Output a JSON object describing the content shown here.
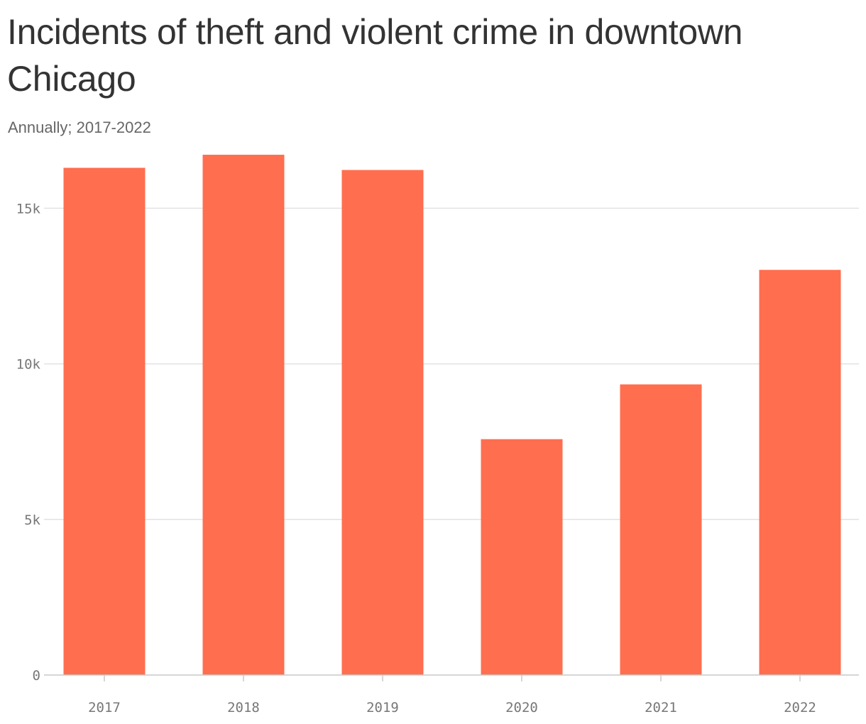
{
  "title": "Incidents of theft and violent crime in downtown Chicago",
  "subtitle": "Annually; 2017-2022",
  "colors": {
    "bar": "#ff6e4f",
    "grid": "#e2e2e2",
    "axis": "#c8c8c8",
    "title": "#333333",
    "subtitle": "#666666",
    "tick_label": "#777777"
  },
  "chart_data": {
    "type": "bar",
    "categories": [
      "2017",
      "2018",
      "2019",
      "2020",
      "2021",
      "2022"
    ],
    "values": [
      16300,
      16720,
      16230,
      7580,
      9340,
      13020
    ],
    "xlabel": "",
    "ylabel": "",
    "ylim": [
      0,
      16720
    ],
    "y_ticks": [
      0,
      5000,
      10000,
      15000
    ],
    "y_tick_labels": [
      "0",
      "5k",
      "10k",
      "15k"
    ],
    "grid": true,
    "legend": "none"
  }
}
